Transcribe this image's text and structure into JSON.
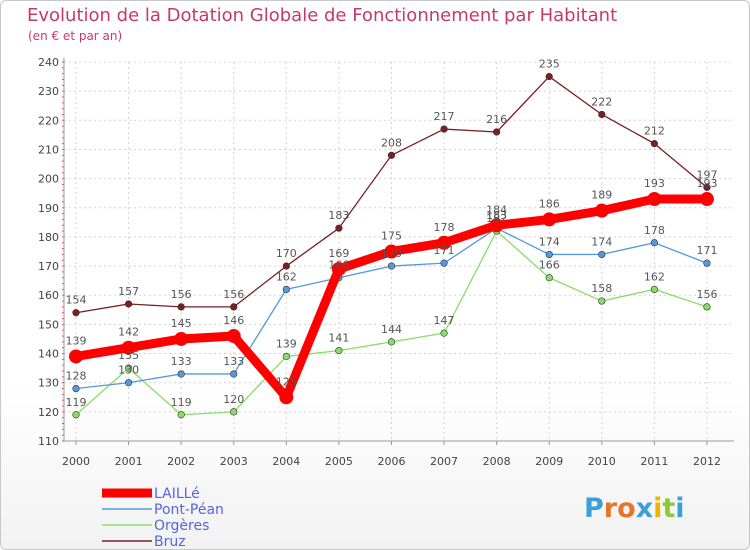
{
  "chart_data": {
    "type": "line",
    "title": "Evolution de la Dotation Globale de Fonctionnement par Habitant",
    "subtitle": "(en € et par an)",
    "categories": [
      "2000",
      "2001",
      "2002",
      "2003",
      "2004",
      "2005",
      "2006",
      "2007",
      "2008",
      "2009",
      "2010",
      "2011",
      "2012"
    ],
    "ylim": [
      110,
      240
    ],
    "yticks": [
      110,
      120,
      130,
      140,
      150,
      160,
      170,
      180,
      190,
      200,
      210,
      220,
      230,
      240
    ],
    "grid": true,
    "series": [
      {
        "name": "Bruz",
        "color": "#7a1f24",
        "values": [
          154,
          157,
          156,
          156,
          170,
          183,
          208,
          217,
          216,
          235,
          222,
          212,
          197
        ]
      },
      {
        "name": "Orgères",
        "color": "#88dd66",
        "values": [
          119,
          135,
          119,
          120,
          139,
          141,
          144,
          147,
          182,
          166,
          158,
          162,
          156
        ]
      },
      {
        "name": "Pont-Péan",
        "color": "#5599dd",
        "values": [
          128,
          130,
          133,
          133,
          162,
          166,
          170,
          171,
          183,
          174,
          174,
          178,
          171
        ]
      },
      {
        "name": "LAILLé",
        "color": "#ff0000",
        "values": [
          139,
          142,
          145,
          146,
          125,
          169,
          175,
          178,
          184,
          186,
          189,
          193,
          193
        ]
      }
    ],
    "legend_order": [
      "LAILLé",
      "Pont-Péan",
      "Orgères",
      "Bruz"
    ]
  },
  "branding": {
    "logo_letters": [
      "P",
      "r",
      "o",
      "x",
      "i",
      "t",
      "i"
    ],
    "logo_colors": [
      "#3aa0d8",
      "#e8742a",
      "#e8742a",
      "#3aa0d8",
      "#f0b400",
      "#88cc33",
      "#3aa0d8"
    ]
  }
}
